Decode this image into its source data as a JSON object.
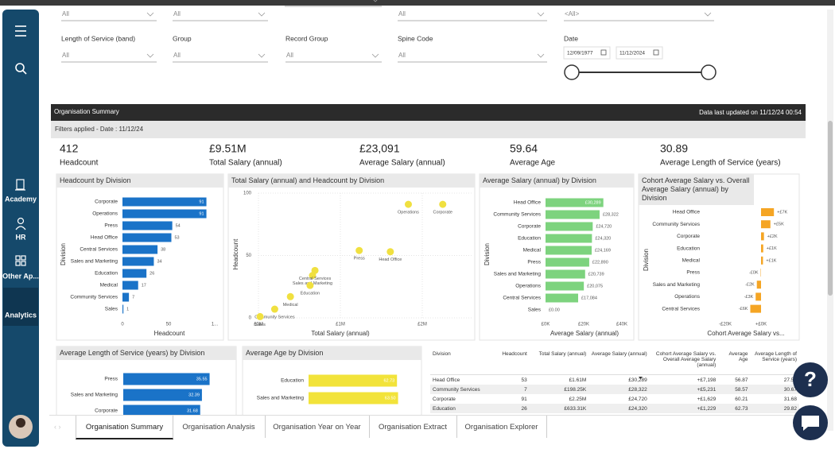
{
  "sidebar": {
    "items": [
      "Academy",
      "HR",
      "Other Ap...",
      "Analytics"
    ]
  },
  "filters": {
    "top_values": [
      "All",
      "All",
      "All",
      "<All>"
    ],
    "labels": [
      "Length of Service (band)",
      "Group",
      "Record Group",
      "Spine Code",
      "Date"
    ],
    "values": [
      "All",
      "All",
      "All",
      "All"
    ],
    "date_from": "12/09/1977",
    "date_to": "11/12/2024"
  },
  "report": {
    "title": "Organisation Summary",
    "updated": "Data last updated on 11/12/24 00:54",
    "filters_applied": "Filters applied - Date : 11/12/24"
  },
  "kpis": [
    {
      "value": "412",
      "label": "Headcount"
    },
    {
      "value": "£9.51M",
      "label": "Total Salary (annual)"
    },
    {
      "value": "£23,091",
      "label": "Average Salary (annual)"
    },
    {
      "value": "59.64",
      "label": "Average Age"
    },
    {
      "value": "30.89",
      "label": "Average Length of Service (years)"
    }
  ],
  "charts": [
    {
      "type": "bar",
      "title": "Headcount by Division",
      "categories": [
        "Corporate",
        "Operations",
        "Press",
        "Head Office",
        "Central Services",
        "Sales and Marketing",
        "Education",
        "Medical",
        "Community Services",
        "Sales"
      ],
      "values": [
        91,
        91,
        54,
        53,
        38,
        34,
        26,
        17,
        7,
        1
      ],
      "color": "#1a73c8",
      "xlim": [
        0,
        100
      ],
      "xticks": [
        0,
        50,
        {
          "value": 100,
          "label": "1..."
        }
      ],
      "x_label": "Headcount",
      "y_label": "Division"
    },
    {
      "type": "scatter",
      "title": "Total Salary (annual) and Headcount by Division",
      "labels": [
        "Operations",
        "Corporate",
        "Press",
        "Head Office",
        "Sales and Marketing",
        "Central Services",
        "Education",
        "Medical",
        "Community Services",
        "Sales"
      ],
      "x": [
        1830000,
        2250000,
        1230000,
        1610000,
        660000,
        690000,
        630000,
        390000,
        198250,
        20000
      ],
      "values": [
        91,
        91,
        54,
        53,
        34,
        38,
        26,
        17,
        7,
        1
      ],
      "color": "#f0e040",
      "xlim": [
        0,
        2600000
      ],
      "xticks": [
        {
          "value": 0,
          "label": "£0M"
        },
        {
          "value": 1000000,
          "label": "£1M"
        },
        {
          "value": 2000000,
          "label": "£2M"
        }
      ],
      "ylim": [
        0,
        100
      ],
      "yticks": [
        0,
        50,
        100
      ],
      "grid": true,
      "x_label": "Total Salary (annual)",
      "y_label": "Headcount"
    },
    {
      "type": "bar",
      "title": "Average Salary (annual) by Division",
      "categories": [
        "Head Office",
        "Community Services",
        "Corporate",
        "Education",
        "Medical",
        "Press",
        "Sales and Marketing",
        "Operations",
        "Central Services",
        "Sales"
      ],
      "values": [
        30289,
        28322,
        24720,
        24320,
        24169,
        22890,
        20739,
        20075,
        17084,
        0
      ],
      "value_labels": [
        "£30,289",
        "£28,322",
        "£24,720",
        "£24,320",
        "£24,169",
        "£22,890",
        "£20,739",
        "£20,075",
        "£17,084",
        "£0.00"
      ],
      "color": "#7dd37e",
      "xlim": [
        0,
        40000
      ],
      "xticks": [
        {
          "value": 0,
          "label": "£0K"
        },
        {
          "value": 20000,
          "label": "£20K"
        },
        {
          "value": 40000,
          "label": "£40K"
        }
      ],
      "x_label": "Average Salary (annual)",
      "y_label": "Division"
    },
    {
      "type": "bar",
      "title": "Cohort Average Salary vs. Overall Average Salary (annual) by Division",
      "categories": [
        "Head Office",
        "Community Services",
        "Corporate",
        "Education",
        "Medical",
        "Press",
        "Sales and Marketing",
        "Operations",
        "Central Services"
      ],
      "values": [
        7198,
        5231,
        1629,
        1229,
        1078,
        -201,
        -2352,
        -3016,
        -6007
      ],
      "value_labels": [
        "+£7K",
        "+£5K",
        "+£2K",
        "+£1K",
        "+£1K",
        "-£0K",
        "-£2K",
        "-£3K",
        "-£6K"
      ],
      "color": "#f5a524",
      "xlim": [
        -32000,
        17000
      ],
      "xticks": [
        {
          "value": -20000,
          "label": "-£20K"
        },
        {
          "value": 0,
          "label": "+£0K"
        }
      ],
      "x_label": "Cohort Average Salary vs...",
      "y_label": "Division"
    },
    {
      "type": "bar",
      "title": "Average Length of Service (years) by Division",
      "categories": [
        "Press",
        "Sales and Marketing",
        "Corporate"
      ],
      "values": [
        35.55,
        32.39,
        31.68
      ],
      "color": "#1a73c8",
      "xlim": [
        0,
        37
      ]
    },
    {
      "type": "bar",
      "title": "Average Age by Division",
      "categories": [
        "Education",
        "Sales and Marketing"
      ],
      "values": [
        62.73,
        63.5
      ],
      "value_labels": [
        "62.73",
        "63.50"
      ],
      "color": "#f2e33a",
      "xlim": [
        0,
        66
      ]
    }
  ],
  "table": {
    "columns": [
      "Division",
      "Headcount",
      "Total Salary (annual)",
      "Average Salary (annual)",
      "Cohort Average Salary vs. Overall Average Salary (annual)",
      "Average Age",
      "Average Length of Service (years)"
    ],
    "rows": [
      [
        "Head Office",
        "53",
        "£1.61M",
        "£30,289",
        "+£7,198",
        "56.87",
        "27.53"
      ],
      [
        "Community Services",
        "7",
        "£198.25K",
        "£28,322",
        "+£5,231",
        "58.57",
        "30.67"
      ],
      [
        "Corporate",
        "91",
        "£2.25M",
        "£24,720",
        "+£1,629",
        "60.21",
        "31.68"
      ],
      [
        "Education",
        "26",
        "£633.31K",
        "£24,320",
        "+£1,229",
        "62.73",
        "29.82"
      ]
    ]
  },
  "tabs": [
    "Organisation Summary",
    "Organisation Analysis",
    "Organisation Year on Year",
    "Organisation Extract",
    "Organisation Explorer"
  ]
}
